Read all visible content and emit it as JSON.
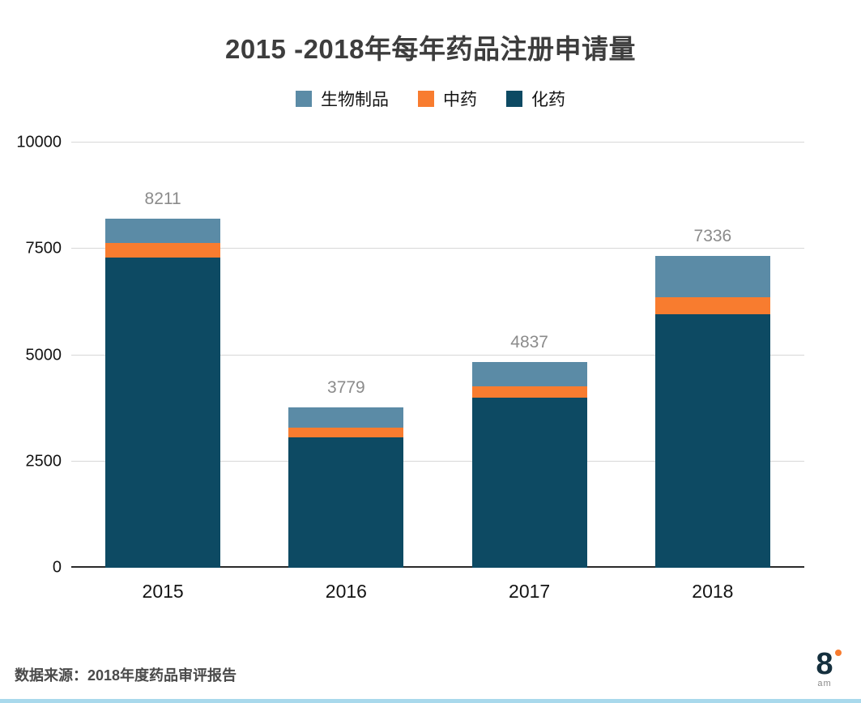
{
  "title": "2015 -2018年每年药品注册申请量",
  "source": "数据来源：2018年度药品审评报告",
  "logo": {
    "number": "8",
    "sub": "am"
  },
  "colors": {
    "biologics": "#5b8ba6",
    "tcm": "#f87c2f",
    "chemical": "#0d4a63",
    "grid": "#d8d8d8",
    "zero_axis": "#2a2a2a",
    "total_label": "#8b8b8b",
    "bottom_strip": "#a9d9ec"
  },
  "chart_data": {
    "type": "bar",
    "stacked": true,
    "title": "2015 -2018年每年药品注册申请量",
    "categories": [
      "2015",
      "2016",
      "2017",
      "2018"
    ],
    "series": [
      {
        "name": "生物制品",
        "color": "#5b8ba6",
        "values": [
          570,
          474,
          567,
          968
        ]
      },
      {
        "name": "中药",
        "color": "#f87c2f",
        "values": [
          340,
          235,
          270,
          406
        ]
      },
      {
        "name": "化药",
        "color": "#0d4a63",
        "values": [
          7301,
          3070,
          4000,
          5962
        ]
      }
    ],
    "totals": [
      8211,
      3779,
      4837,
      7336
    ],
    "xlabel": "",
    "ylabel": "",
    "ylim": [
      0,
      10000
    ],
    "yticks": [
      0,
      2500,
      5000,
      7500,
      10000
    ],
    "legend_position": "top",
    "grid": "horizontal"
  }
}
